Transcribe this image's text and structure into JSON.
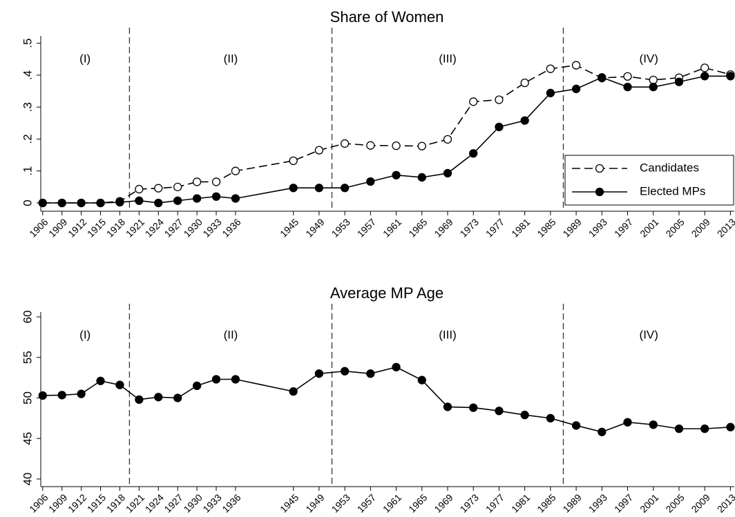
{
  "chart_data": [
    {
      "type": "line",
      "title": "Share of Women",
      "x": [
        1906,
        1909,
        1912,
        1915,
        1918,
        1921,
        1924,
        1927,
        1930,
        1933,
        1936,
        1945,
        1949,
        1953,
        1957,
        1961,
        1965,
        1969,
        1973,
        1977,
        1981,
        1985,
        1989,
        1993,
        1997,
        2001,
        2005,
        2009,
        2013
      ],
      "series": [
        {
          "name": "Candidates",
          "color": "#000000",
          "dash": "dashed",
          "marker": "hollow",
          "values": [
            0,
            0,
            0,
            0,
            0.005,
            0.043,
            0.046,
            0.05,
            0.066,
            0.066,
            0.1,
            0.132,
            0.165,
            0.186,
            0.18,
            0.179,
            0.178,
            0.199,
            0.317,
            0.323,
            0.376,
            0.42,
            0.431,
            0.391,
            0.396,
            0.385,
            0.392,
            0.423,
            0.402
          ]
        },
        {
          "name": "Elected MPs",
          "color": "#000000",
          "dash": "solid",
          "marker": "filled",
          "values": [
            0,
            0,
            0,
            0,
            0.002,
            0.007,
            0,
            0.007,
            0.014,
            0.02,
            0.014,
            0.047,
            0.047,
            0.047,
            0.067,
            0.087,
            0.08,
            0.093,
            0.155,
            0.238,
            0.258,
            0.344,
            0.357,
            0.393,
            0.363,
            0.363,
            0.379,
            0.397,
            0.397
          ]
        }
      ],
      "xlim": [
        1905.7,
        2013.6
      ],
      "xticks": [
        1906,
        1909,
        1912,
        1915,
        1918,
        1921,
        1924,
        1927,
        1930,
        1933,
        1936,
        1945,
        1949,
        1953,
        1957,
        1961,
        1965,
        1969,
        1973,
        1977,
        1981,
        1985,
        1989,
        1993,
        1997,
        2001,
        2005,
        2009,
        2013
      ],
      "ylim": [
        -0.026,
        0.523
      ],
      "yticks": [
        0,
        {
          "value": 0.1,
          "label": ".1"
        },
        {
          "value": 0.2,
          "label": ".2"
        },
        {
          "value": 0.3,
          "label": ".3"
        },
        {
          "value": 0.4,
          "label": ".4"
        },
        {
          "value": 0.5,
          "label": ".5"
        }
      ],
      "vlines": [
        1919.5,
        1951,
        1987
      ],
      "periods": [
        "(I)",
        "(II)",
        "(III)",
        "(IV)"
      ],
      "legend": "lower right"
    },
    {
      "type": "line",
      "title": "Average MP Age",
      "x": [
        1906,
        1909,
        1912,
        1915,
        1918,
        1921,
        1924,
        1927,
        1930,
        1933,
        1936,
        1945,
        1949,
        1953,
        1957,
        1961,
        1965,
        1969,
        1973,
        1977,
        1981,
        1985,
        1989,
        1993,
        1997,
        2001,
        2005,
        2009,
        2013
      ],
      "series": [
        {
          "color": "#000000",
          "dash": "solid",
          "marker": "filled",
          "values": [
            50.3,
            50.35,
            50.5,
            52.1,
            51.6,
            49.8,
            50.1,
            50.0,
            51.5,
            52.3,
            52.3,
            50.8,
            53.0,
            53.3,
            53.0,
            53.8,
            52.2,
            48.9,
            48.8,
            48.4,
            47.9,
            47.5,
            46.6,
            45.8,
            47.0,
            46.7,
            46.2,
            46.2,
            46.4
          ]
        }
      ],
      "xlim": [
        1905.7,
        2013.6
      ],
      "xticks": [
        1906,
        1909,
        1912,
        1915,
        1918,
        1921,
        1924,
        1927,
        1930,
        1933,
        1936,
        1945,
        1949,
        1953,
        1957,
        1961,
        1965,
        1969,
        1973,
        1977,
        1981,
        1985,
        1989,
        1993,
        1997,
        2001,
        2005,
        2009,
        2013
      ],
      "ylim": [
        39.06,
        60.6
      ],
      "yticks": [
        40,
        45,
        50,
        55,
        60
      ],
      "vlines": [
        1919.5,
        1951,
        1987
      ],
      "periods": [
        "(I)",
        "(II)",
        "(III)",
        "(IV)"
      ]
    }
  ]
}
